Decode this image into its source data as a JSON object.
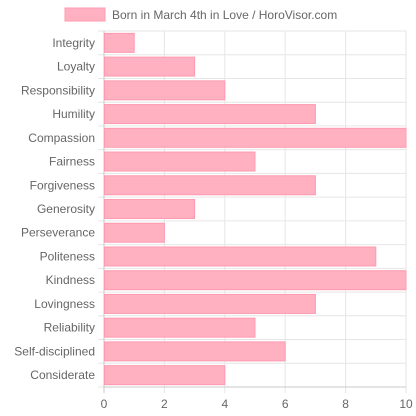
{
  "chart_data": {
    "type": "bar",
    "orientation": "horizontal",
    "title": "",
    "legend": {
      "position": "top",
      "entries": [
        "Born in March 4th in Love / HoroVisor.com"
      ]
    },
    "categories": [
      "Integrity",
      "Loyalty",
      "Responsibility",
      "Humility",
      "Compassion",
      "Fairness",
      "Forgiveness",
      "Generosity",
      "Perseverance",
      "Politeness",
      "Kindness",
      "Lovingness",
      "Reliability",
      "Self-disciplined",
      "Considerate"
    ],
    "series": [
      {
        "name": "Born in March 4th in Love / HoroVisor.com",
        "color": "#ffb1c1",
        "border_color": "#ff9ab0",
        "values": [
          1,
          3,
          4,
          7,
          10,
          5,
          7,
          3,
          2,
          9,
          10,
          7,
          5,
          6,
          4
        ]
      }
    ],
    "xlim": [
      0,
      10
    ],
    "x_ticks": [
      "0",
      "2",
      "4",
      "6",
      "8",
      "10"
    ],
    "xlabel": "",
    "ylabel": "",
    "grid": true
  }
}
